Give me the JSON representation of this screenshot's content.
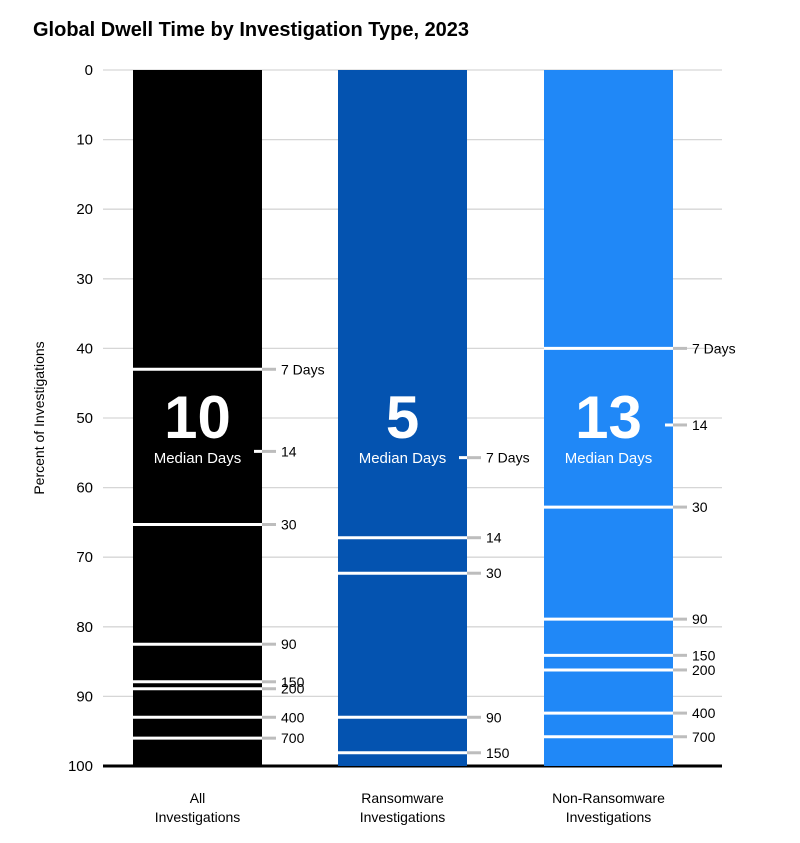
{
  "chart_data": {
    "type": "bar",
    "title": "Global Dwell Time by Investigation Type, 2023",
    "ylabel": "Percent of Investigations",
    "ylim": [
      0,
      100
    ],
    "y_inverted": true,
    "yticks": [
      "0",
      "10",
      "20",
      "30",
      "40",
      "50",
      "60",
      "70",
      "80",
      "90",
      "100"
    ],
    "grid": true,
    "median_label": "Median Days",
    "series": [
      {
        "category": [
          "All",
          "Investigations"
        ],
        "color": "#000000",
        "median": "10",
        "median_y": 50,
        "thresholds": [
          {
            "label": "7 Days",
            "value": 43.0
          },
          {
            "label": "14",
            "value": 54.8,
            "marker_only": true
          },
          {
            "label": "30",
            "value": 65.3
          },
          {
            "label": "90",
            "value": 82.5
          },
          {
            "label": "150",
            "value": 87.9
          },
          {
            "label": "200",
            "value": 88.9
          },
          {
            "label": "400",
            "value": 93.0
          },
          {
            "label": "700",
            "value": 96.0
          }
        ]
      },
      {
        "category": [
          "Ransomware",
          "Investigations"
        ],
        "color": "#0453b0",
        "median": "5",
        "median_y": 50,
        "thresholds": [
          {
            "label": "7 Days",
            "value": 55.7,
            "marker_only": true
          },
          {
            "label": "14",
            "value": 67.2
          },
          {
            "label": "30",
            "value": 72.3
          },
          {
            "label": "90",
            "value": 93.0
          },
          {
            "label": "150",
            "value": 98.1
          }
        ]
      },
      {
        "category": [
          "Non-Ransomware",
          "Investigations"
        ],
        "color": "#2088f7",
        "median": "13",
        "median_y": 50,
        "thresholds": [
          {
            "label": "7 Days",
            "value": 40.0
          },
          {
            "label": "14",
            "value": 51.0,
            "marker_only": true
          },
          {
            "label": "30",
            "value": 62.8
          },
          {
            "label": "90",
            "value": 78.9
          },
          {
            "label": "150",
            "value": 84.1
          },
          {
            "label": "200",
            "value": 86.2
          },
          {
            "label": "400",
            "value": 92.4
          },
          {
            "label": "700",
            "value": 95.8
          }
        ]
      }
    ]
  }
}
